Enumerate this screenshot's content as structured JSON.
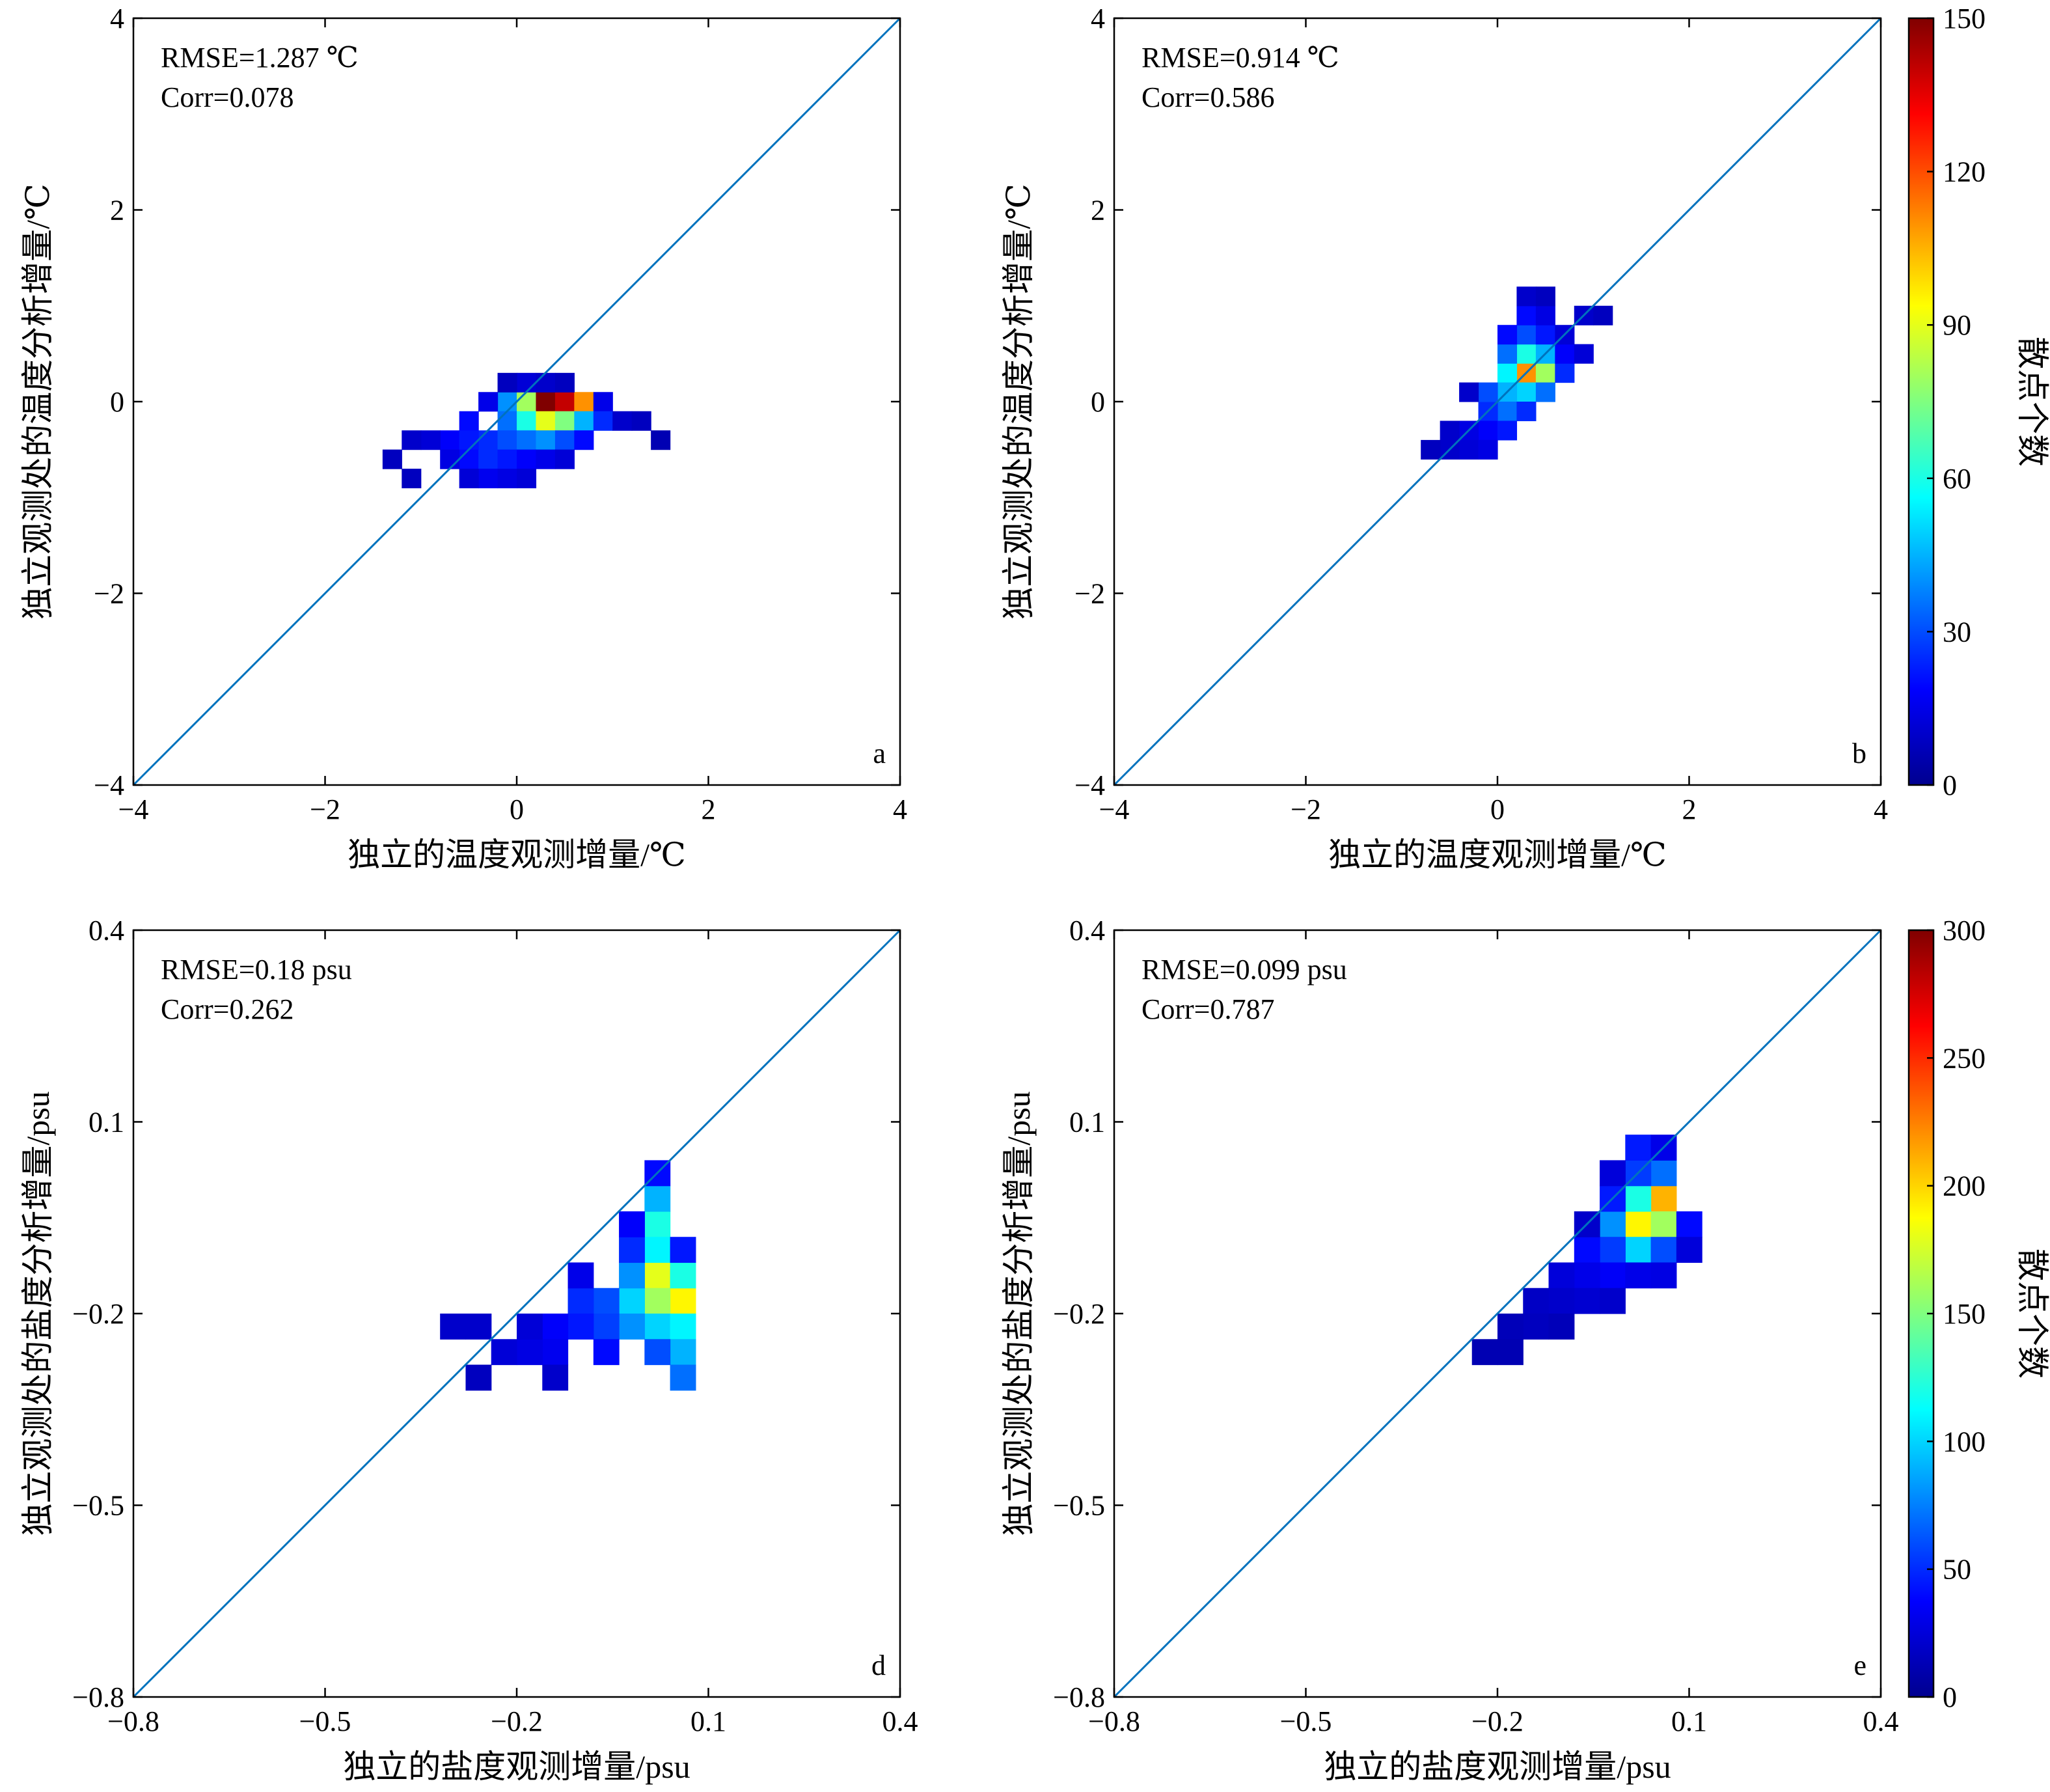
{
  "chart_data": [
    {
      "type": "heatmap",
      "id": "a",
      "panel_letter": "a",
      "xlabel": "独立的温度观测增量/℃",
      "ylabel": "独立观测处的温度分析增量/℃",
      "xlim": [
        -4,
        4
      ],
      "ylim": [
        -4,
        4
      ],
      "xticks": [
        -4,
        -2,
        0,
        2,
        4
      ],
      "yticks": [
        -4,
        -2,
        0,
        2,
        4
      ],
      "xtick_labels": [
        "−4",
        "−2",
        "0",
        "2",
        "4"
      ],
      "ytick_labels": [
        "−4",
        "−2",
        "0",
        "2",
        "4"
      ],
      "bin_size": 0.2,
      "vmax": 150,
      "annotations": [
        "RMSE=1.287 ℃",
        "Corr=0.078"
      ],
      "reference_line": "y=x",
      "cells": [
        [
          -0.1,
          0.0,
          40
        ],
        [
          0.1,
          0.0,
          80
        ],
        [
          0.3,
          0.0,
          150
        ],
        [
          0.5,
          0.0,
          140
        ],
        [
          0.7,
          0.0,
          110
        ],
        [
          -0.3,
          0.0,
          15
        ],
        [
          0.9,
          0.0,
          15
        ],
        [
          -0.1,
          -0.2,
          35
        ],
        [
          0.1,
          -0.2,
          60
        ],
        [
          0.3,
          -0.2,
          90
        ],
        [
          0.5,
          -0.2,
          75
        ],
        [
          0.7,
          -0.2,
          45
        ],
        [
          -0.5,
          -0.2,
          20
        ],
        [
          0.9,
          -0.2,
          25
        ],
        [
          -0.3,
          -0.4,
          25
        ],
        [
          -0.1,
          -0.4,
          30
        ],
        [
          0.1,
          -0.4,
          35
        ],
        [
          0.3,
          -0.4,
          40
        ],
        [
          0.5,
          -0.4,
          30
        ],
        [
          -0.7,
          -0.4,
          18
        ],
        [
          -0.5,
          -0.4,
          22
        ],
        [
          0.7,
          -0.4,
          20
        ],
        [
          -0.9,
          -0.4,
          12
        ],
        [
          -0.5,
          -0.6,
          20
        ],
        [
          -0.3,
          -0.6,
          25
        ],
        [
          -0.1,
          -0.6,
          22
        ],
        [
          0.1,
          -0.6,
          18
        ],
        [
          0.3,
          -0.6,
          15
        ],
        [
          -1.1,
          -0.4,
          10
        ],
        [
          1.1,
          -0.2,
          10
        ],
        [
          1.3,
          -0.2,
          8
        ],
        [
          -0.7,
          -0.6,
          14
        ],
        [
          0.5,
          -0.6,
          12
        ],
        [
          -0.3,
          -0.8,
          16
        ],
        [
          -0.1,
          -0.8,
          14
        ],
        [
          0.1,
          -0.8,
          12
        ],
        [
          -0.5,
          -0.8,
          12
        ],
        [
          -1.3,
          -0.6,
          8
        ],
        [
          -1.1,
          -0.8,
          8
        ],
        [
          1.5,
          -0.4,
          6
        ],
        [
          0.1,
          0.2,
          12
        ],
        [
          0.3,
          0.2,
          10
        ],
        [
          -0.1,
          0.2,
          8
        ],
        [
          0.5,
          0.2,
          8
        ]
      ]
    },
    {
      "type": "heatmap",
      "id": "b",
      "panel_letter": "b",
      "xlabel": "独立的温度观测增量/℃",
      "ylabel": "独立观测处的温度分析增量/℃",
      "xlim": [
        -4,
        4
      ],
      "ylim": [
        -4,
        4
      ],
      "xticks": [
        -4,
        -2,
        0,
        2,
        4
      ],
      "yticks": [
        -4,
        -2,
        0,
        2,
        4
      ],
      "xtick_labels": [
        "−4",
        "−2",
        "0",
        "2",
        "4"
      ],
      "ytick_labels": [
        "−4",
        "−2",
        "0",
        "2",
        "4"
      ],
      "bin_size": 0.2,
      "vmax": 150,
      "annotations": [
        "RMSE=0.914 ℃",
        "Corr=0.586"
      ],
      "reference_line": "y=x",
      "cells": [
        [
          0.3,
          0.3,
          110
        ],
        [
          0.5,
          0.3,
          80
        ],
        [
          0.1,
          0.3,
          55
        ],
        [
          0.3,
          0.5,
          60
        ],
        [
          0.5,
          0.5,
          45
        ],
        [
          0.3,
          0.1,
          50
        ],
        [
          0.1,
          0.1,
          45
        ],
        [
          0.5,
          0.1,
          35
        ],
        [
          0.1,
          0.5,
          35
        ],
        [
          0.3,
          0.7,
          30
        ],
        [
          0.1,
          -0.1,
          35
        ],
        [
          -0.1,
          -0.1,
          25
        ],
        [
          0.3,
          -0.1,
          25
        ],
        [
          0.5,
          0.7,
          22
        ],
        [
          -0.1,
          0.1,
          30
        ],
        [
          0.7,
          0.3,
          25
        ],
        [
          0.1,
          0.7,
          20
        ],
        [
          0.3,
          0.9,
          20
        ],
        [
          -0.1,
          -0.3,
          18
        ],
        [
          0.1,
          -0.3,
          22
        ],
        [
          -0.3,
          -0.3,
          14
        ],
        [
          0.7,
          0.5,
          18
        ],
        [
          0.5,
          0.9,
          14
        ],
        [
          -0.3,
          -0.5,
          12
        ],
        [
          -0.1,
          -0.5,
          14
        ],
        [
          0.9,
          0.5,
          12
        ],
        [
          0.7,
          0.7,
          12
        ],
        [
          -0.5,
          -0.5,
          10
        ],
        [
          -0.3,
          0.1,
          10
        ],
        [
          0.9,
          0.9,
          10
        ],
        [
          1.1,
          0.9,
          8
        ],
        [
          -0.5,
          -0.3,
          10
        ],
        [
          -0.7,
          -0.5,
          8
        ],
        [
          0.3,
          1.1,
          10
        ],
        [
          0.5,
          1.1,
          8
        ]
      ]
    },
    {
      "type": "heatmap",
      "id": "d",
      "panel_letter": "d",
      "xlabel": "独立的盐度观测增量/psu",
      "ylabel": "独立观测处的盐度分析增量/psu",
      "xlim": [
        -0.8,
        0.4
      ],
      "ylim": [
        -0.8,
        0.4
      ],
      "xticks": [
        -0.8,
        -0.5,
        -0.2,
        0.1,
        0.4
      ],
      "yticks": [
        -0.8,
        -0.5,
        -0.2,
        0.1,
        0.4
      ],
      "xtick_labels": [
        "−0.8",
        "−0.5",
        "−0.2",
        "0.1",
        "0.4"
      ],
      "ytick_labels": [
        "−0.8",
        "−0.5",
        "−0.2",
        "0.1",
        "0.4"
      ],
      "bin_size": 0.04,
      "vmax": 150,
      "annotations": [
        "RMSE=0.18 psu",
        "Corr=0.262"
      ],
      "reference_line": "y=x",
      "cells": [
        [
          0.06,
          -0.18,
          95
        ],
        [
          0.02,
          -0.14,
          90
        ],
        [
          0.02,
          -0.18,
          80
        ],
        [
          0.02,
          -0.06,
          60
        ],
        [
          0.06,
          -0.14,
          60
        ],
        [
          -0.02,
          -0.18,
          50
        ],
        [
          0.02,
          -0.22,
          50
        ],
        [
          0.06,
          -0.22,
          55
        ],
        [
          0.02,
          -0.02,
          45
        ],
        [
          0.02,
          -0.1,
          55
        ],
        [
          -0.02,
          -0.14,
          40
        ],
        [
          -0.02,
          -0.22,
          40
        ],
        [
          0.06,
          -0.26,
          45
        ],
        [
          0.06,
          -0.3,
          35
        ],
        [
          0.02,
          -0.26,
          30
        ],
        [
          -0.06,
          -0.18,
          30
        ],
        [
          -0.06,
          -0.22,
          28
        ],
        [
          -0.1,
          -0.18,
          25
        ],
        [
          -0.1,
          -0.22,
          22
        ],
        [
          -0.02,
          -0.1,
          25
        ],
        [
          0.06,
          -0.1,
          22
        ],
        [
          -0.14,
          -0.22,
          18
        ],
        [
          -0.14,
          -0.26,
          16
        ],
        [
          -0.18,
          -0.26,
          14
        ],
        [
          -0.06,
          -0.26,
          20
        ],
        [
          0.02,
          0.02,
          20
        ],
        [
          -0.02,
          -0.06,
          18
        ],
        [
          -0.1,
          -0.14,
          15
        ],
        [
          -0.18,
          -0.22,
          12
        ],
        [
          -0.22,
          -0.26,
          12
        ],
        [
          -0.26,
          -0.22,
          10
        ],
        [
          -0.3,
          -0.22,
          10
        ],
        [
          -0.26,
          -0.3,
          8
        ],
        [
          -0.14,
          -0.3,
          10
        ]
      ]
    },
    {
      "type": "heatmap",
      "id": "e",
      "panel_letter": "e",
      "xlabel": "独立的盐度观测增量/psu",
      "ylabel": "独立观测处的盐度分析增量/psu",
      "xlim": [
        -0.8,
        0.4
      ],
      "ylim": [
        -0.8,
        0.4
      ],
      "xticks": [
        -0.8,
        -0.5,
        -0.2,
        0.1,
        0.4
      ],
      "yticks": [
        -0.8,
        -0.5,
        -0.2,
        0.1,
        0.4
      ],
      "xtick_labels": [
        "−0.8",
        "−0.5",
        "−0.2",
        "0.1",
        "0.4"
      ],
      "ytick_labels": [
        "−0.8",
        "−0.5",
        "−0.2",
        "0.1",
        "0.4"
      ],
      "bin_size": 0.04,
      "vmax": 300,
      "annotations": [
        "RMSE=0.099 psu",
        "Corr=0.787"
      ],
      "reference_line": "y=x",
      "cells": [
        [
          0.06,
          -0.02,
          210
        ],
        [
          0.02,
          -0.06,
          190
        ],
        [
          0.06,
          -0.06,
          160
        ],
        [
          0.02,
          -0.02,
          120
        ],
        [
          0.02,
          -0.1,
          100
        ],
        [
          -0.02,
          -0.06,
          80
        ],
        [
          0.06,
          0.02,
          70
        ],
        [
          0.06,
          -0.1,
          60
        ],
        [
          0.02,
          0.02,
          55
        ],
        [
          -0.02,
          -0.1,
          55
        ],
        [
          -0.02,
          -0.02,
          45
        ],
        [
          0.02,
          0.06,
          45
        ],
        [
          0.1,
          -0.06,
          40
        ],
        [
          -0.06,
          -0.1,
          40
        ],
        [
          -0.02,
          -0.14,
          35
        ],
        [
          0.02,
          -0.14,
          30
        ],
        [
          0.06,
          -0.14,
          28
        ],
        [
          -0.06,
          -0.14,
          30
        ],
        [
          -0.1,
          -0.14,
          25
        ],
        [
          -0.06,
          -0.18,
          22
        ],
        [
          -0.1,
          -0.18,
          20
        ],
        [
          -0.02,
          -0.18,
          20
        ],
        [
          0.1,
          -0.1,
          25
        ],
        [
          -0.14,
          -0.18,
          18
        ],
        [
          -0.14,
          -0.22,
          16
        ],
        [
          -0.1,
          -0.22,
          14
        ],
        [
          -0.18,
          -0.22,
          14
        ],
        [
          -0.18,
          -0.26,
          12
        ],
        [
          -0.22,
          -0.26,
          12
        ],
        [
          0.06,
          0.06,
          30
        ],
        [
          -0.02,
          0.02,
          25
        ],
        [
          -0.06,
          -0.06,
          20
        ]
      ]
    }
  ],
  "colorbars": [
    {
      "panel": "b",
      "vmin": 0,
      "vmax": 150,
      "ticks": [
        "0",
        "30",
        "60",
        "90",
        "120",
        "150"
      ],
      "label": "散点个数"
    },
    {
      "panel": "e",
      "vmin": 0,
      "vmax": 300,
      "ticks": [
        "0",
        "50",
        "100",
        "150",
        "200",
        "250",
        "300"
      ],
      "label": "散点个数"
    }
  ]
}
